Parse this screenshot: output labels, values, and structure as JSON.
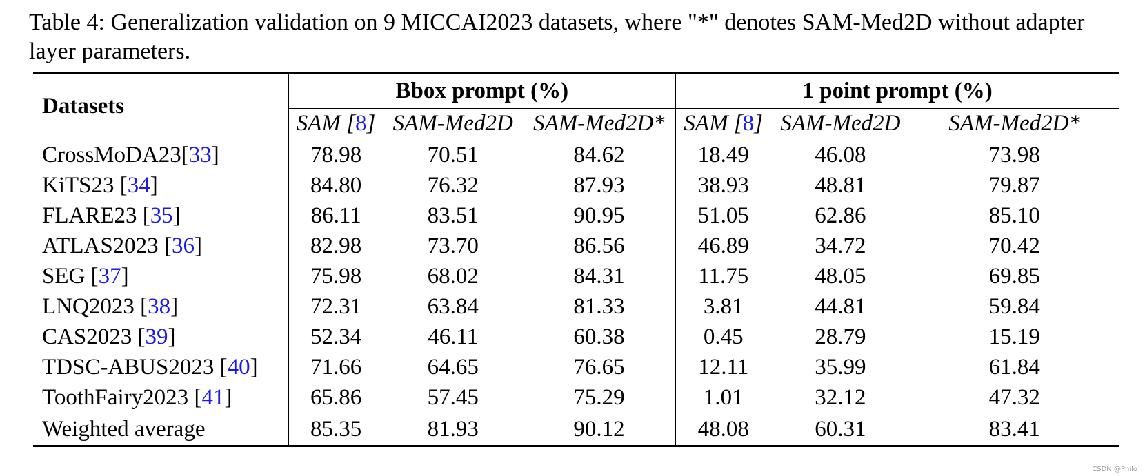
{
  "caption": "Table 4: Generalization validation on 9 MICCAI2023 datasets, where \"*\" denotes SAM-Med2D without adapter layer parameters.",
  "header": {
    "datasets_label": "Datasets",
    "groups": [
      "Bbox prompt (%)",
      "1 point prompt (%)"
    ],
    "sub": [
      {
        "name": "SAM",
        "ref": "8"
      },
      {
        "name": "SAM-Med2D",
        "ref": ""
      },
      {
        "name": "SAM-Med2D*",
        "ref": ""
      },
      {
        "name": "SAM",
        "ref": "8"
      },
      {
        "name": "SAM-Med2D",
        "ref": ""
      },
      {
        "name": "SAM-Med2D*",
        "ref": ""
      }
    ]
  },
  "rows": [
    {
      "name": "CrossMoDA23",
      "ref": "33",
      "values": [
        "78.98",
        "70.51",
        "84.62",
        "18.49",
        "46.08",
        "73.98"
      ]
    },
    {
      "name": "KiTS23 ",
      "ref": "34",
      "values": [
        "84.80",
        "76.32",
        "87.93",
        "38.93",
        "48.81",
        "79.87"
      ]
    },
    {
      "name": "FLARE23 ",
      "ref": "35",
      "values": [
        "86.11",
        "83.51",
        "90.95",
        "51.05",
        "62.86",
        "85.10"
      ]
    },
    {
      "name": "ATLAS2023 ",
      "ref": "36",
      "values": [
        "82.98",
        "73.70",
        "86.56",
        "46.89",
        "34.72",
        "70.42"
      ]
    },
    {
      "name": "SEG ",
      "ref": "37",
      "values": [
        "75.98",
        "68.02",
        "84.31",
        "11.75",
        "48.05",
        "69.85"
      ]
    },
    {
      "name": "LNQ2023 ",
      "ref": "38",
      "values": [
        "72.31",
        "63.84",
        "81.33",
        "3.81",
        "44.81",
        "59.84"
      ]
    },
    {
      "name": "CAS2023 ",
      "ref": "39",
      "values": [
        "52.34",
        "46.11",
        "60.38",
        "0.45",
        "28.79",
        "15.19"
      ]
    },
    {
      "name": "TDSC-ABUS2023 ",
      "ref": "40",
      "values": [
        "71.66",
        "64.65",
        "76.65",
        "12.11",
        "35.99",
        "61.84"
      ]
    },
    {
      "name": "ToothFairy2023 ",
      "ref": "41",
      "values": [
        "65.86",
        "57.45",
        "75.29",
        "1.01",
        "32.12",
        "47.32"
      ]
    }
  ],
  "average": {
    "name": "Weighted average",
    "values": [
      "85.35",
      "81.93",
      "90.12",
      "48.08",
      "60.31",
      "83.41"
    ]
  },
  "watermark": "CSDN @Philo`"
}
